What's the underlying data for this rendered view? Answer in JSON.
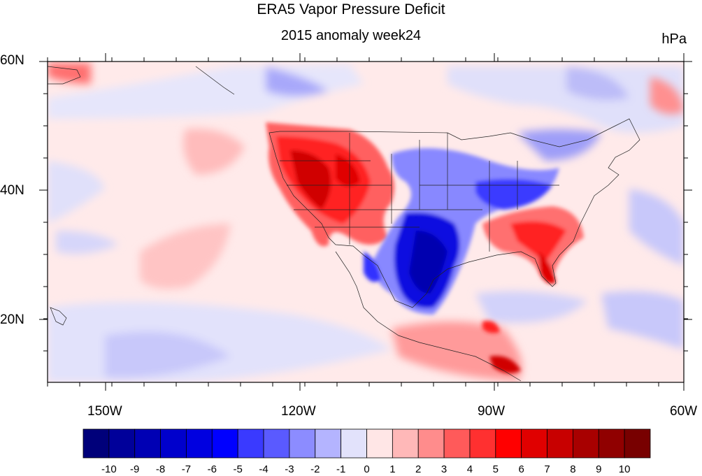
{
  "header": {
    "title": "ERA5 Vapor Pressure Deficit",
    "subtitle": "2015 anomaly week24",
    "units": "hPa"
  },
  "axes": {
    "lat_labels": [
      "60N",
      "40N",
      "20N"
    ],
    "lon_labels": [
      "150W",
      "120W",
      "90W",
      "60W"
    ]
  },
  "colorbar": {
    "labels": [
      "-10",
      "-9",
      "-8",
      "-7",
      "-6",
      "-5",
      "-4",
      "-3",
      "-2",
      "-1",
      "0",
      "1",
      "2",
      "3",
      "4",
      "5",
      "6",
      "7",
      "8",
      "9",
      "10"
    ],
    "colors": [
      "#00007a",
      "#00009a",
      "#0000b4",
      "#0000cc",
      "#0000e0",
      "#0000ff",
      "#3a3aff",
      "#5a5aff",
      "#8c8cff",
      "#b4b4ff",
      "#e2e2fb",
      "#ffe6e6",
      "#ffb8b8",
      "#ff8c8c",
      "#ff5a5a",
      "#ff3030",
      "#ff0000",
      "#e00000",
      "#c80000",
      "#a80000",
      "#900000",
      "#780000"
    ]
  },
  "map": {
    "background_color": "#ffeaea",
    "features": [
      "anomaly-fill",
      "coastlines",
      "us-state-borders"
    ]
  }
}
